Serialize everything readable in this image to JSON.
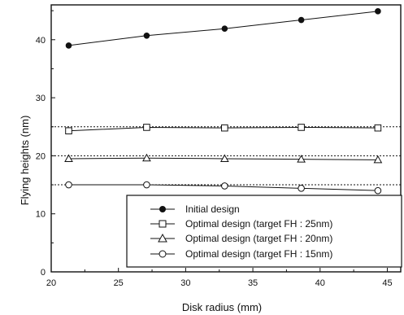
{
  "chart_data": {
    "type": "line",
    "title": "",
    "xlabel": "Disk radius (mm)",
    "ylabel": "Flying heights (nm)",
    "xlim": [
      20,
      46
    ],
    "ylim": [
      0,
      46
    ],
    "xticks": [
      20,
      25,
      30,
      35,
      40,
      45
    ],
    "yticks": [
      0,
      10,
      20,
      30,
      40
    ],
    "x": [
      21.3,
      27.1,
      32.9,
      38.6,
      44.3
    ],
    "series": [
      {
        "name": "Initial design",
        "marker": "filled-circle",
        "values": [
          39.0,
          40.7,
          41.9,
          43.4,
          44.9
        ]
      },
      {
        "name": "Optimal design (target FH : 25nm)",
        "marker": "open-square",
        "values": [
          24.3,
          24.9,
          24.8,
          24.9,
          24.8
        ]
      },
      {
        "name": "Optimal design (target FH : 20nm)",
        "marker": "open-triangle",
        "values": [
          19.5,
          19.6,
          19.5,
          19.4,
          19.3
        ]
      },
      {
        "name": "Optimal design (target FH : 15nm)",
        "marker": "open-circle",
        "values": [
          15.0,
          15.0,
          14.8,
          14.4,
          14.0
        ]
      }
    ],
    "reference_lines": [
      25,
      20,
      15
    ],
    "grid": false,
    "legend_position": "bottom-right"
  }
}
